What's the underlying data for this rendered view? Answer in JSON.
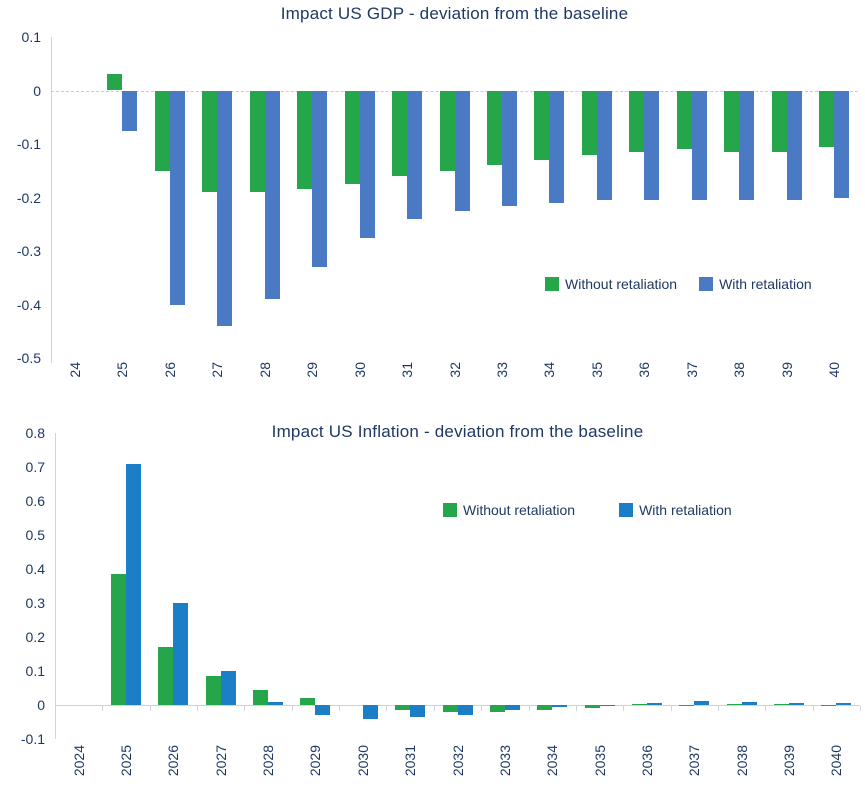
{
  "colors": {
    "text": "#1f3864",
    "axis": "#cfd3da",
    "green": "#26a64b",
    "gdp_blue": "#4a7ac4",
    "inflation_blue": "#1b7ec6"
  },
  "chart_data": [
    {
      "type": "bar",
      "title": "Impact US GDP - deviation from the baseline",
      "categories": [
        "24",
        "25",
        "26",
        "27",
        "28",
        "29",
        "30",
        "31",
        "32",
        "33",
        "34",
        "35",
        "36",
        "37",
        "38",
        "39",
        "40"
      ],
      "series": [
        {
          "name": "Without retaliation",
          "color": "#26a64b",
          "values": [
            0,
            0.03,
            -0.15,
            -0.19,
            -0.19,
            -0.185,
            -0.175,
            -0.16,
            -0.15,
            -0.14,
            -0.13,
            -0.12,
            -0.115,
            -0.11,
            -0.115,
            -0.115,
            -0.105
          ]
        },
        {
          "name": "With retaliation",
          "color": "#4a7ac4",
          "values": [
            0,
            -0.075,
            -0.4,
            -0.44,
            -0.39,
            -0.33,
            -0.275,
            -0.24,
            -0.225,
            -0.215,
            -0.21,
            -0.205,
            -0.205,
            -0.205,
            -0.205,
            -0.205,
            -0.2
          ]
        }
      ],
      "ylim": [
        -0.5,
        0.1
      ],
      "yticks": [
        "0.1",
        "0",
        "-0.1",
        "-0.2",
        "-0.3",
        "-0.4",
        "-0.5"
      ],
      "grid": "zero-line-only",
      "zero_line": {
        "style": "dashed",
        "color": "#c3cdde"
      },
      "legend_position": "inside-right-lower"
    },
    {
      "type": "bar",
      "title": "Impact US Inflation - deviation from the baseline",
      "categories": [
        "2024",
        "2025",
        "2026",
        "2027",
        "2028",
        "2029",
        "2030",
        "2031",
        "2032",
        "2033",
        "2034",
        "2035",
        "2036",
        "2037",
        "2038",
        "2039",
        "2040"
      ],
      "series": [
        {
          "name": "Without retaliation",
          "color": "#26a64b",
          "values": [
            0,
            0.385,
            0.17,
            0.085,
            0.045,
            0.02,
            0,
            -0.015,
            -0.02,
            -0.02,
            -0.015,
            -0.01,
            0.002,
            0.001,
            0.003,
            0.002,
            0.001
          ]
        },
        {
          "name": "With retaliation",
          "color": "#1b7ec6",
          "values": [
            0,
            0.71,
            0.3,
            0.1,
            0.01,
            -0.03,
            -0.04,
            -0.035,
            -0.03,
            -0.015,
            -0.005,
            -0.002,
            0.005,
            0.012,
            0.008,
            0.006,
            0.005
          ]
        }
      ],
      "ylim": [
        -0.1,
        0.8
      ],
      "yticks": [
        "0.8",
        "0.7",
        "0.6",
        "0.5",
        "0.4",
        "0.3",
        "0.2",
        "0.1",
        "0",
        "-0.1"
      ],
      "grid": "zero-line-only",
      "zero_line": {
        "style": "solid",
        "color": "#d2d2d2"
      },
      "legend_position": "inside-center-upper"
    }
  ]
}
